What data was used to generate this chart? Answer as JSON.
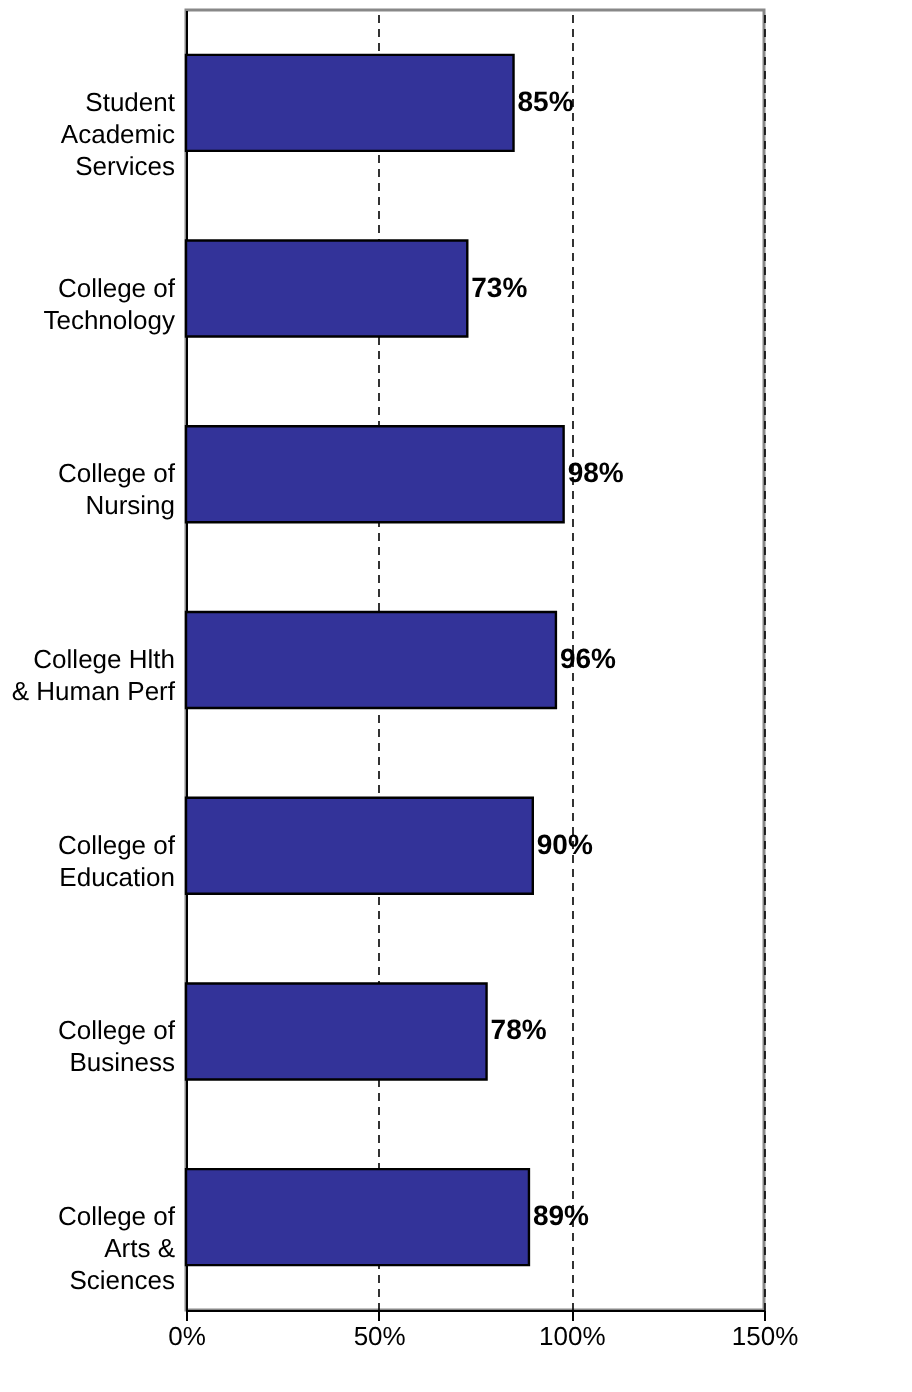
{
  "chart_data": {
    "type": "bar",
    "orientation": "horizontal",
    "categories": [
      "Student Academic Services",
      "College of Technology",
      "College of Nursing",
      "College Hlth & Human Perf",
      "College of Education",
      "College of Business",
      "College of Arts & Sciences"
    ],
    "values": [
      85,
      73,
      98,
      96,
      90,
      78,
      89
    ],
    "value_labels": [
      "85%",
      "73%",
      "98%",
      "96%",
      "90%",
      "78%",
      "89%"
    ],
    "color": "#333399",
    "xlim": [
      0,
      150
    ],
    "xticks": [
      {
        "value": 0,
        "label": "0%"
      },
      {
        "value": 50,
        "label": "50%"
      },
      {
        "value": 100,
        "label": "100%"
      },
      {
        "value": 150,
        "label": "150%"
      }
    ],
    "grid": "x"
  }
}
